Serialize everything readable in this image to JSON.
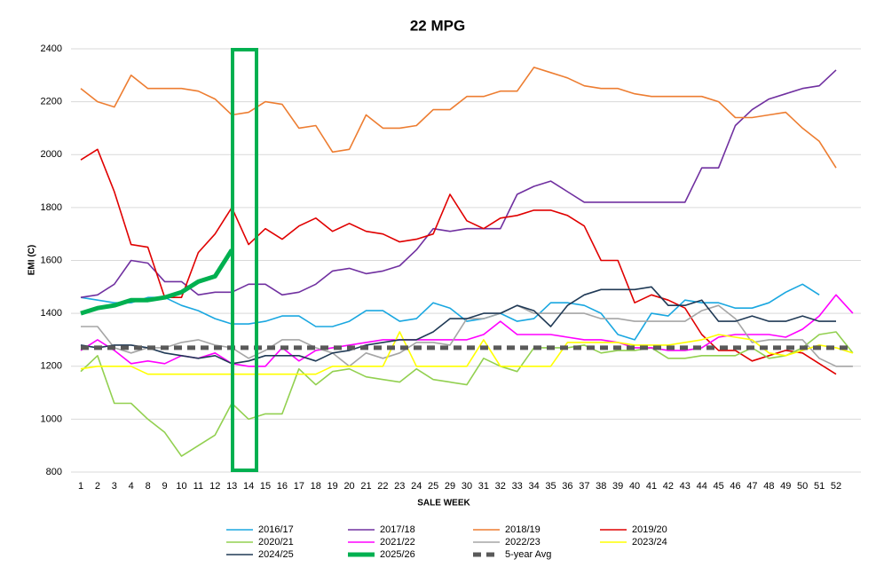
{
  "chart_data": {
    "type": "line",
    "title": "22 MPG",
    "x_label": "SALE WEEK",
    "y_label": "EMI (C)",
    "categories": [
      1,
      2,
      3,
      4,
      8,
      9,
      10,
      11,
      12,
      13,
      14,
      15,
      16,
      17,
      18,
      19,
      20,
      21,
      22,
      23,
      24,
      25,
      29,
      30,
      31,
      32,
      33,
      34,
      35,
      36,
      37,
      38,
      39,
      40,
      41,
      42,
      43,
      44,
      45,
      46,
      47,
      48,
      49,
      50,
      51,
      52,
      null
    ],
    "ylim": [
      800,
      2400
    ],
    "yticks": [
      800,
      1000,
      1200,
      1400,
      1600,
      1800,
      2000,
      2200,
      2400
    ],
    "grid": true,
    "legend": "bottom",
    "series": [
      {
        "name": "2016/17",
        "color": "#1aa7e0",
        "style": "normal",
        "values": [
          1460,
          1450,
          1440,
          1440,
          1460,
          1460,
          1430,
          1410,
          1380,
          1360,
          1360,
          1370,
          1390,
          1390,
          1350,
          1350,
          1370,
          1410,
          1410,
          1370,
          1380,
          1440,
          1420,
          1370,
          1380,
          1400,
          1370,
          1380,
          1440,
          1440,
          1430,
          1400,
          1320,
          1300,
          1400,
          1390,
          1450,
          1440,
          1440,
          1420,
          1420,
          1440,
          1480,
          1510,
          1470,
          null,
          null
        ]
      },
      {
        "name": "2017/18",
        "color": "#7030a0",
        "style": "normal",
        "values": [
          1460,
          1470,
          1510,
          1600,
          1590,
          1520,
          1520,
          1470,
          1480,
          1480,
          1510,
          1510,
          1470,
          1480,
          1510,
          1560,
          1570,
          1550,
          1560,
          1580,
          1640,
          1720,
          1710,
          1720,
          1720,
          1720,
          1850,
          1880,
          1900,
          1860,
          1820,
          1820,
          1820,
          1820,
          1820,
          1820,
          1820,
          1950,
          1950,
          2110,
          2170,
          2210,
          2230,
          2250,
          2260,
          2320,
          null
        ]
      },
      {
        "name": "2018/19",
        "color": "#ed7d31",
        "style": "normal",
        "values": [
          2250,
          2200,
          2180,
          2300,
          2250,
          2250,
          2250,
          2240,
          2210,
          2150,
          2160,
          2200,
          2190,
          2100,
          2110,
          2010,
          2020,
          2150,
          2100,
          2100,
          2110,
          2170,
          2170,
          2220,
          2220,
          2240,
          2240,
          2330,
          2310,
          2290,
          2260,
          2250,
          2250,
          2230,
          2220,
          2220,
          2220,
          2220,
          2200,
          2140,
          2140,
          2150,
          2160,
          2100,
          2050,
          1950,
          null
        ]
      },
      {
        "name": "2019/20",
        "color": "#e00000",
        "style": "normal",
        "values": [
          1980,
          2020,
          1860,
          1660,
          1650,
          1460,
          1460,
          1630,
          1700,
          1800,
          1660,
          1720,
          1680,
          1730,
          1760,
          1710,
          1740,
          1710,
          1700,
          1670,
          1680,
          1700,
          1850,
          1750,
          1720,
          1760,
          1770,
          1790,
          1790,
          1770,
          1730,
          1600,
          1600,
          1440,
          1470,
          1450,
          1420,
          1320,
          1260,
          1260,
          1220,
          1240,
          1260,
          1250,
          1210,
          1170,
          null
        ]
      },
      {
        "name": "2020/21",
        "color": "#92d050",
        "style": "normal",
        "values": [
          1180,
          1240,
          1060,
          1060,
          1000,
          950,
          860,
          900,
          940,
          1060,
          1000,
          1020,
          1020,
          1190,
          1130,
          1180,
          1190,
          1160,
          1150,
          1140,
          1190,
          1150,
          1140,
          1130,
          1230,
          1200,
          1180,
          1270,
          1270,
          1270,
          1280,
          1250,
          1260,
          1260,
          1270,
          1230,
          1230,
          1240,
          1240,
          1240,
          1270,
          1230,
          1240,
          1270,
          1320,
          1330,
          1250
        ]
      },
      {
        "name": "2021/22",
        "color": "#ff00ff",
        "style": "normal",
        "values": [
          1260,
          1300,
          1260,
          1210,
          1220,
          1210,
          1240,
          1230,
          1250,
          1210,
          1200,
          1200,
          1270,
          1220,
          1260,
          1270,
          1280,
          1290,
          1300,
          1300,
          1300,
          1300,
          1300,
          1300,
          1320,
          1370,
          1320,
          1320,
          1320,
          1310,
          1300,
          1300,
          1290,
          1270,
          1270,
          1260,
          1260,
          1270,
          1310,
          1320,
          1320,
          1320,
          1310,
          1340,
          1390,
          1470,
          1400
        ]
      },
      {
        "name": "2022/23",
        "color": "#a5a5a5",
        "style": "normal",
        "values": [
          1350,
          1350,
          1270,
          1250,
          1270,
          1270,
          1290,
          1300,
          1280,
          1270,
          1230,
          1260,
          1300,
          1300,
          1270,
          1250,
          1200,
          1250,
          1230,
          1250,
          1290,
          1290,
          1280,
          1380,
          1380,
          1400,
          1430,
          1400,
          1400,
          1400,
          1400,
          1380,
          1380,
          1370,
          1370,
          1370,
          1370,
          1410,
          1430,
          1380,
          1290,
          1300,
          1300,
          1300,
          1230,
          1200,
          1200
        ]
      },
      {
        "name": "2023/24",
        "color": "#ffff00",
        "style": "normal",
        "values": [
          1190,
          1200,
          1200,
          1200,
          1170,
          1170,
          1170,
          1170,
          1170,
          1170,
          1170,
          1170,
          1170,
          1170,
          1170,
          1200,
          1200,
          1200,
          1200,
          1330,
          1200,
          1200,
          1200,
          1200,
          1300,
          1200,
          1200,
          1200,
          1200,
          1290,
          1290,
          1290,
          1290,
          1280,
          1280,
          1280,
          1290,
          1300,
          1320,
          1310,
          1300,
          1250,
          1240,
          1260,
          1280,
          1270,
          1250
        ]
      },
      {
        "name": "2024/25",
        "color": "#203a56",
        "style": "normal",
        "values": [
          1280,
          1270,
          1280,
          1280,
          1270,
          1250,
          1240,
          1230,
          1240,
          1210,
          1220,
          1240,
          1240,
          1240,
          1220,
          1250,
          1260,
          1280,
          1290,
          1300,
          1300,
          1330,
          1380,
          1380,
          1400,
          1400,
          1430,
          1410,
          1350,
          1430,
          1470,
          1490,
          1490,
          1490,
          1500,
          1430,
          1430,
          1450,
          1370,
          1370,
          1390,
          1370,
          1370,
          1390,
          1370,
          1370,
          null
        ]
      },
      {
        "name": "2025/26",
        "color": "#00b050",
        "style": "bold",
        "values": [
          1400,
          1420,
          1430,
          1450,
          1450,
          1460,
          1480,
          1520,
          1540,
          1640,
          null,
          null,
          null,
          null,
          null,
          null,
          null,
          null,
          null,
          null,
          null,
          null,
          null,
          null,
          null,
          null,
          null,
          null,
          null,
          null,
          null,
          null,
          null,
          null,
          null,
          null,
          null,
          null,
          null,
          null,
          null,
          null,
          null,
          null,
          null,
          null,
          null
        ]
      },
      {
        "name": "5-year Avg",
        "color": "#595959",
        "style": "dashed",
        "values": [
          1270,
          1270,
          1270,
          1270,
          1270,
          1270,
          1270,
          1270,
          1270,
          1270,
          1270,
          1270,
          1270,
          1270,
          1270,
          1270,
          1270,
          1270,
          1270,
          1270,
          1270,
          1270,
          1270,
          1270,
          1270,
          1270,
          1270,
          1270,
          1270,
          1270,
          1270,
          1270,
          1270,
          1270,
          1270,
          1270,
          1270,
          1270,
          1270,
          1270,
          1270,
          1270,
          1270,
          1270,
          1270,
          1270,
          1270
        ]
      }
    ]
  }
}
